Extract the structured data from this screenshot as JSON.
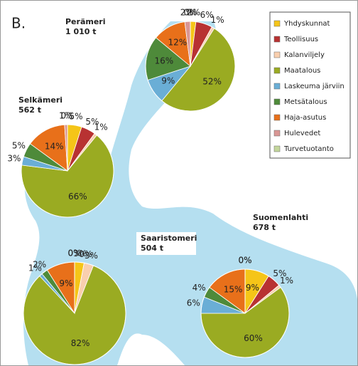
{
  "panel_label": "B.",
  "chart_data": [
    {
      "type": "pie",
      "title": "Perämeri",
      "subtitle": "1 010 t",
      "categories": [
        "Yhdyskunnat",
        "Teollisuus",
        "Kalanviljely",
        "Maatalous",
        "Laskeuma järviin",
        "Metsätalous",
        "Haja-asutus",
        "Hulevedet",
        "Turvetuotanto"
      ],
      "colors": [
        "#f5c518",
        "#b83232",
        "#f9cfae",
        "#9aab22",
        "#6aaed6",
        "#4e8a3a",
        "#e8701a",
        "#d99694",
        "#c3d69b"
      ],
      "values": [
        2,
        6,
        1,
        52,
        9,
        16,
        12,
        2,
        0
      ],
      "value_labels": [
        "2%",
        "6%",
        "1%",
        "52%",
        "9%",
        "16%",
        "12%",
        "2%",
        "0%"
      ]
    },
    {
      "type": "pie",
      "title": "Selkämeri",
      "subtitle": "562 t",
      "categories": [
        "Yhdyskunnat",
        "Teollisuus",
        "Kalanviljely",
        "Maatalous",
        "Laskeuma järviin",
        "Metsätalous",
        "Haja-asutus",
        "Hulevedet",
        "Turvetuotanto"
      ],
      "colors": [
        "#f5c518",
        "#b83232",
        "#f9cfae",
        "#9aab22",
        "#6aaed6",
        "#4e8a3a",
        "#e8701a",
        "#d99694",
        "#c3d69b"
      ],
      "values": [
        5,
        5,
        1,
        66,
        3,
        5,
        14,
        1,
        0
      ],
      "value_labels": [
        "5%",
        "5%",
        "1%",
        "66%",
        "3%",
        "5%",
        "14%",
        "1%",
        "0%"
      ]
    },
    {
      "type": "pie",
      "title": "Saaristomeri",
      "subtitle": "504 t",
      "categories": [
        "Yhdyskunnat",
        "Teollisuus",
        "Kalanviljely",
        "Maatalous",
        "Laskeuma järviin",
        "Metsätalous",
        "Haja-asutus",
        "Hulevedet",
        "Turvetuotanto"
      ],
      "colors": [
        "#f5c518",
        "#b83232",
        "#f9cfae",
        "#9aab22",
        "#6aaed6",
        "#4e8a3a",
        "#e8701a",
        "#d99694",
        "#c3d69b"
      ],
      "values": [
        3,
        0,
        3,
        82,
        1,
        2,
        9,
        0,
        0
      ],
      "value_labels": [
        "3%",
        "0%",
        "3%",
        "82%",
        "1%",
        "2%",
        "9%",
        "0%",
        "0%"
      ]
    },
    {
      "type": "pie",
      "title": "Suomenlahti",
      "subtitle": "678 t",
      "categories": [
        "Yhdyskunnat",
        "Teollisuus",
        "Kalanviljely",
        "Maatalous",
        "Laskeuma järviin",
        "Metsätalous",
        "Haja-asutus",
        "Hulevedet",
        "Turvetuotanto"
      ],
      "colors": [
        "#f5c518",
        "#b83232",
        "#f9cfae",
        "#9aab22",
        "#6aaed6",
        "#4e8a3a",
        "#e8701a",
        "#d99694",
        "#c3d69b"
      ],
      "values": [
        9,
        5,
        1,
        60,
        6,
        4,
        15,
        0,
        0
      ],
      "value_labels": [
        "9%",
        "5%",
        "1%",
        "60%",
        "6%",
        "4%",
        "15%",
        "0%",
        "0%"
      ]
    }
  ]
}
